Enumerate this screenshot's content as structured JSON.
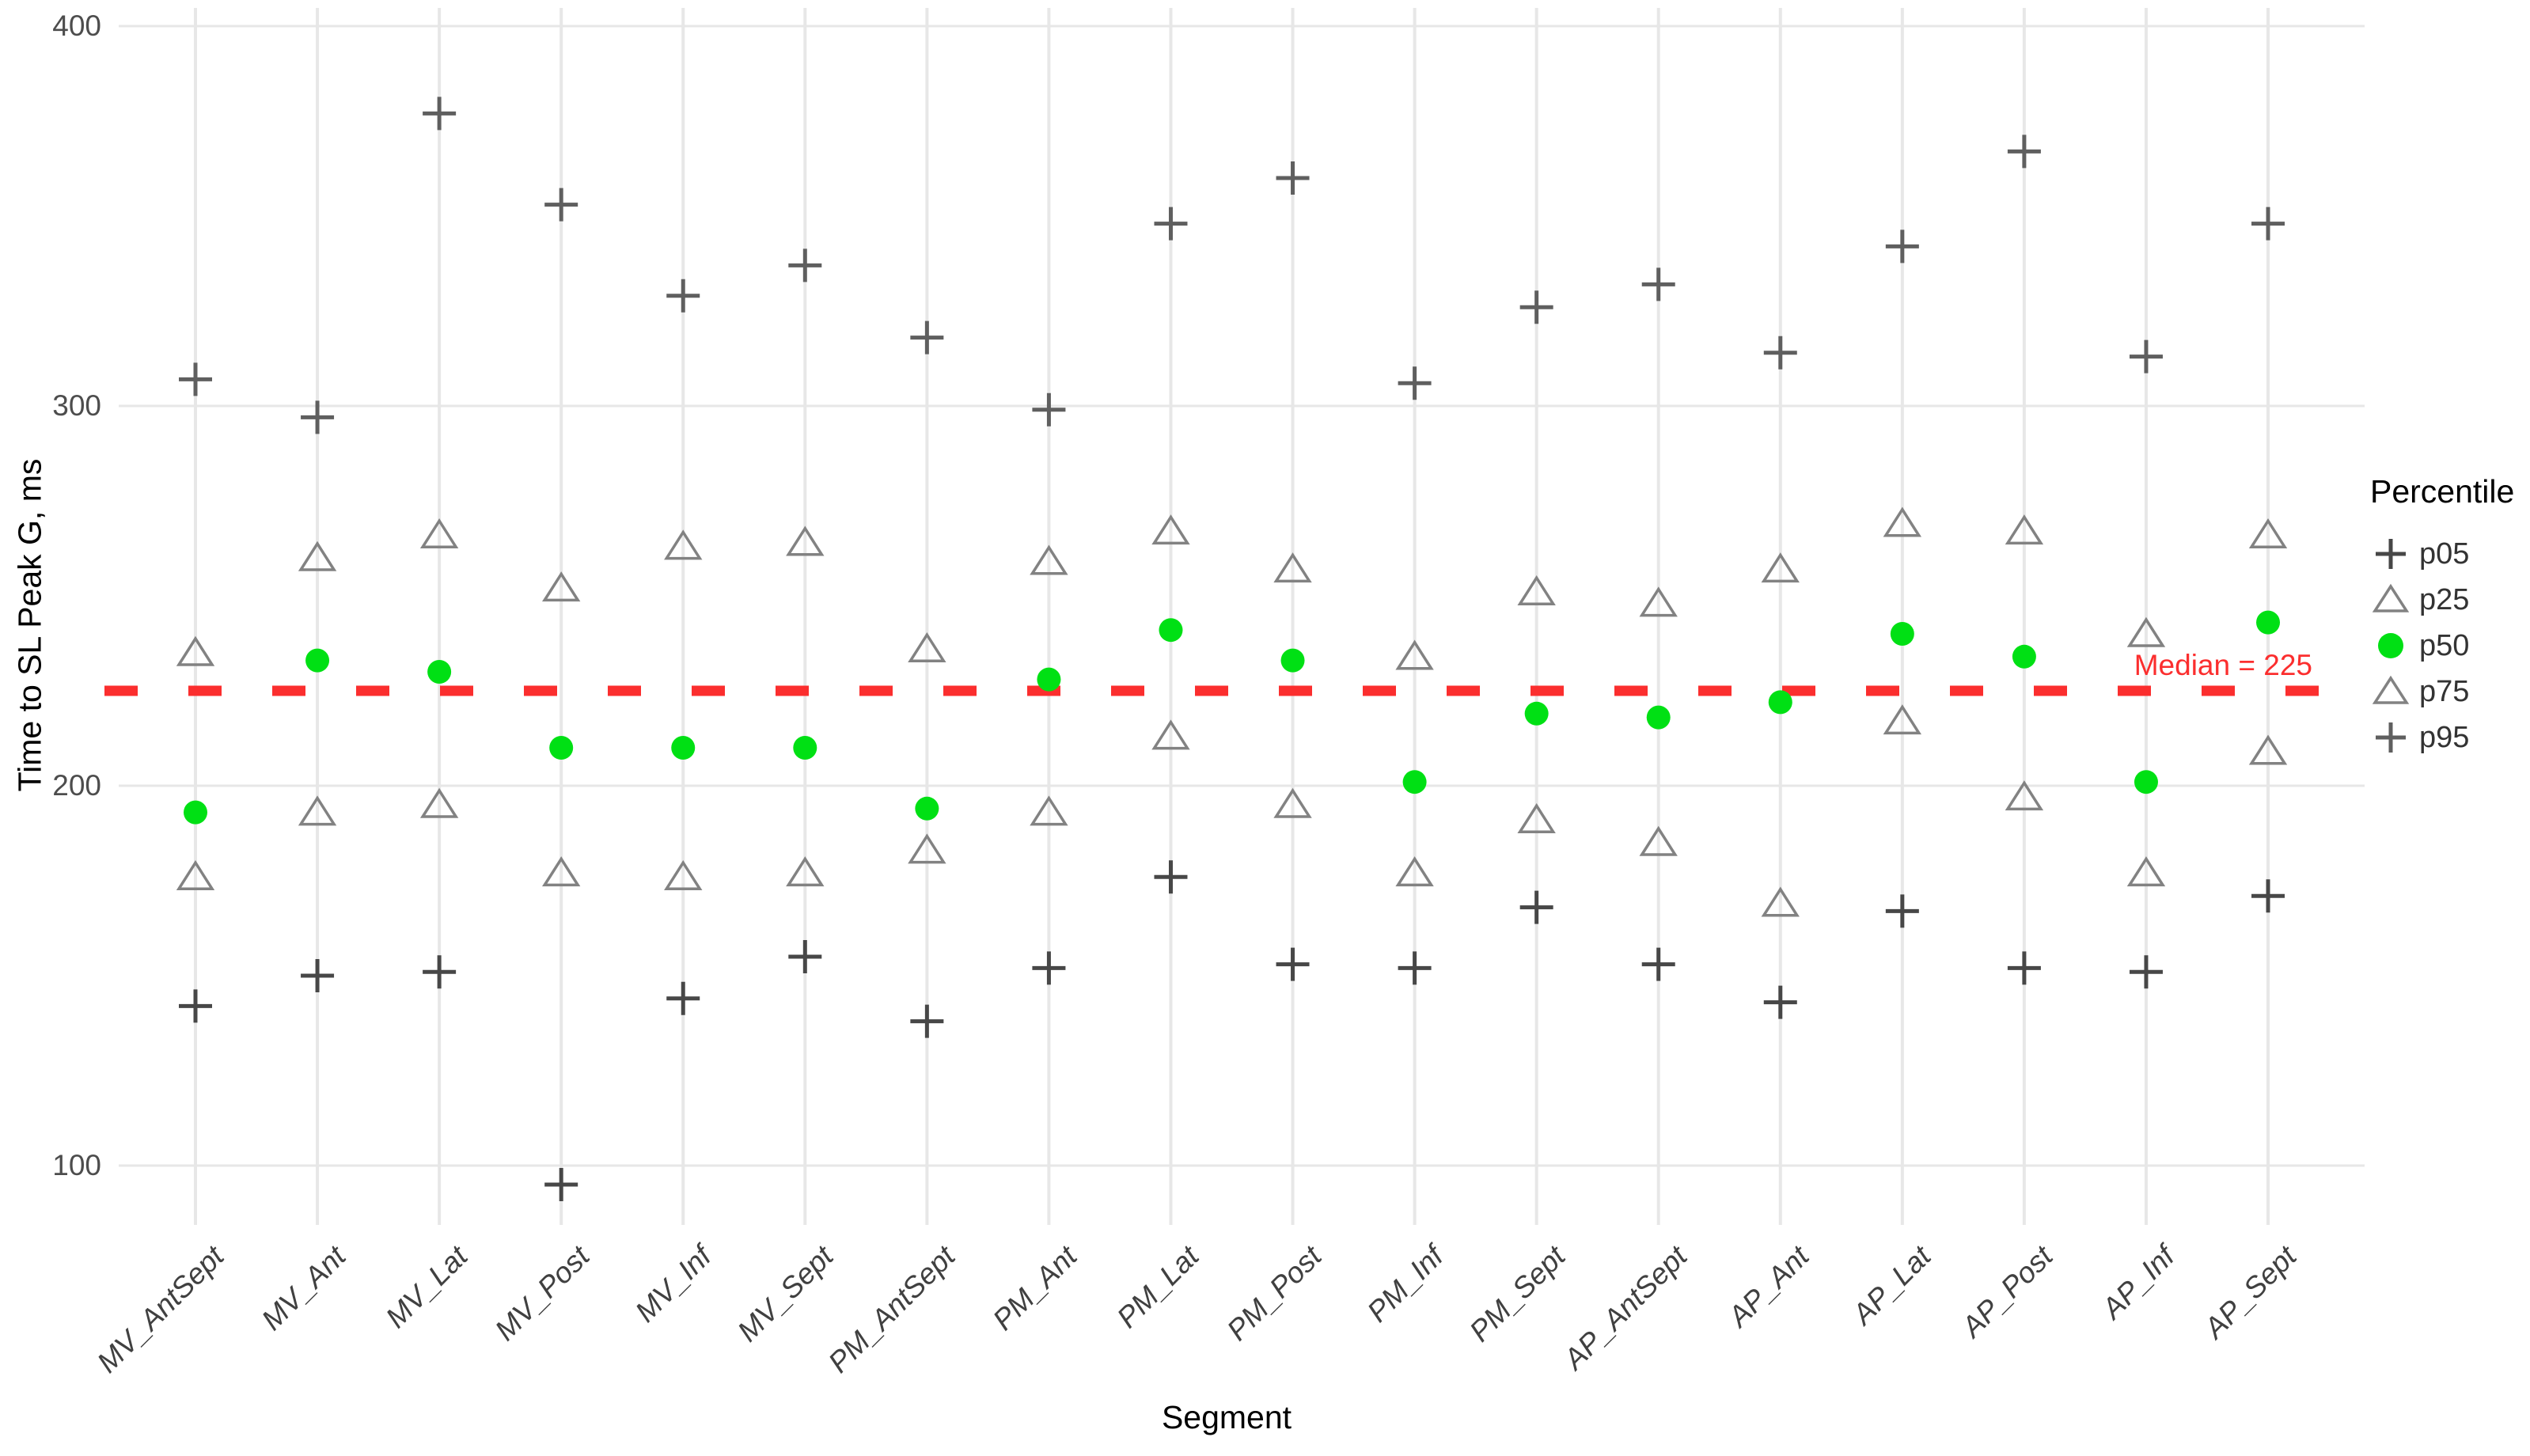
{
  "chart_data": {
    "type": "scatter",
    "title": "",
    "xlabel": "Segment",
    "ylabel": "Time to SL Peak G, ms",
    "ylim": [
      85,
      405
    ],
    "yticks": [
      400,
      300,
      200,
      100
    ],
    "grid": true,
    "legend_title": "Percentile",
    "legend_position": "right",
    "categories": [
      "MV_AntSept",
      "MV_Ant",
      "MV_Lat",
      "MV_Post",
      "MV_Inf",
      "MV_Sept",
      "PM_AntSept",
      "PM_Ant",
      "PM_Lat",
      "PM_Post",
      "PM_Inf",
      "PM_Sept",
      "AP_AntSept",
      "AP_Ant",
      "AP_Lat",
      "AP_Post",
      "AP_Inf",
      "AP_Sept"
    ],
    "series": [
      {
        "name": "p05",
        "marker": "plus",
        "color": "#474747",
        "values": [
          142,
          150,
          151,
          95,
          144,
          155,
          138,
          152,
          176,
          153,
          152,
          168,
          153,
          143,
          167,
          152,
          151,
          171
        ]
      },
      {
        "name": "p25",
        "marker": "triangle-open",
        "color": "#828282",
        "values": [
          176,
          193,
          195,
          177,
          176,
          177,
          183,
          193,
          213,
          195,
          177,
          191,
          185,
          169,
          217,
          197,
          177,
          209
        ]
      },
      {
        "name": "p50",
        "marker": "circle",
        "color": "#00E014",
        "values": [
          193,
          233,
          230,
          210,
          210,
          210,
          194,
          228,
          241,
          233,
          201,
          219,
          218,
          222,
          240,
          234,
          201,
          243
        ]
      },
      {
        "name": "p75",
        "marker": "triangle-open",
        "color": "#828282",
        "values": [
          235,
          260,
          266,
          252,
          263,
          264,
          236,
          259,
          267,
          257,
          234,
          251,
          248,
          257,
          269,
          267,
          240,
          266
        ]
      },
      {
        "name": "p95",
        "marker": "plus",
        "color": "#5f5f5f",
        "values": [
          307,
          297,
          377,
          353,
          329,
          337,
          318,
          299,
          348,
          360,
          306,
          326,
          332,
          314,
          342,
          367,
          313,
          348
        ]
      }
    ],
    "reference_line": {
      "value": 225,
      "label": "Median = 225",
      "style": "dashed",
      "color": "#FB2E2E"
    }
  },
  "colors": {
    "background": "#ffffff",
    "gridline": "#e7e7e7",
    "median_red": "#FB2E2E",
    "p50_green": "#00E014",
    "tick_text": "#4d4d4d"
  }
}
